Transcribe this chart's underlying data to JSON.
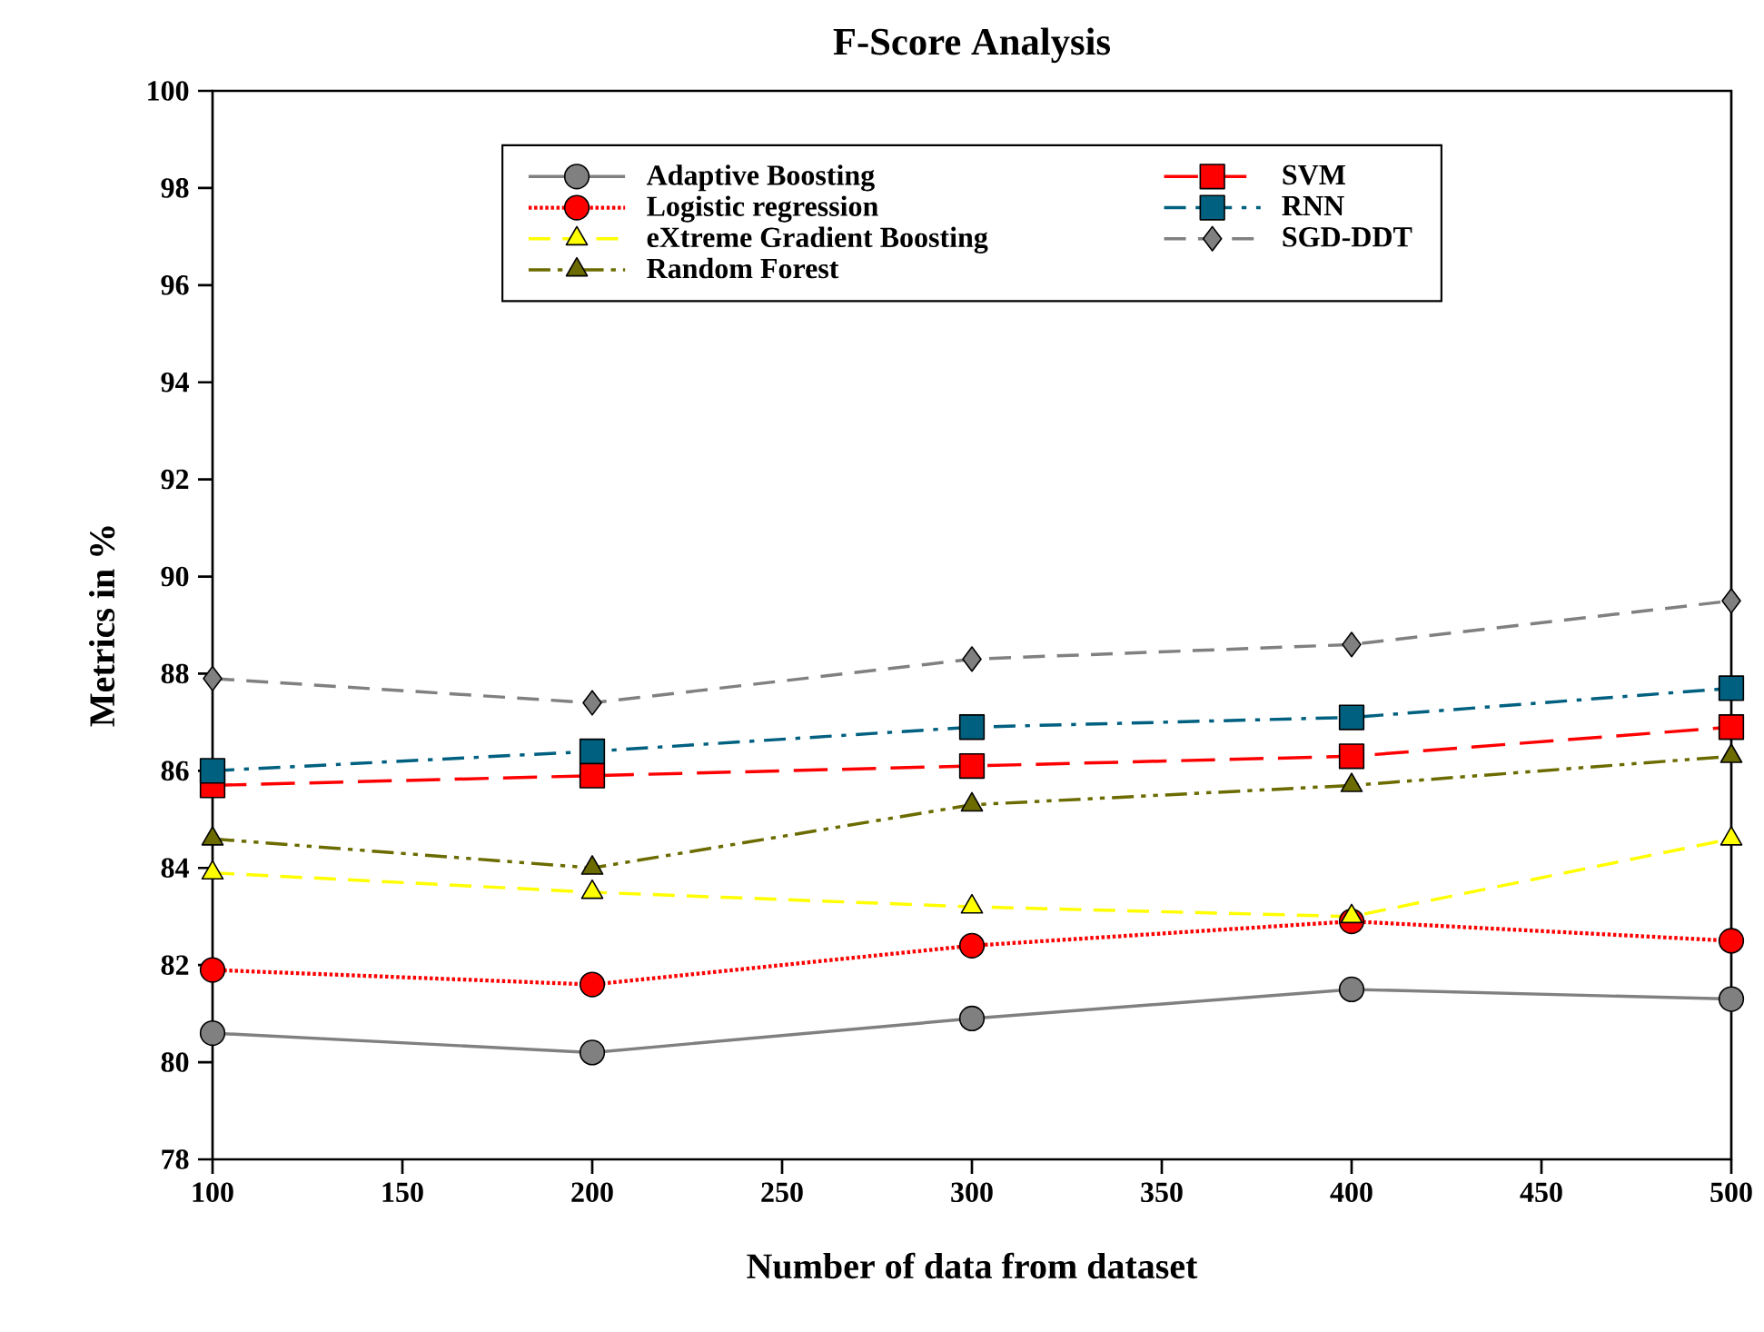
{
  "chart_data": {
    "type": "line",
    "title": "F-Score Analysis",
    "xlabel": "Number of data from dataset",
    "ylabel": "Metrics in %",
    "x": [
      100,
      200,
      300,
      400,
      500
    ],
    "xlim": [
      100,
      500
    ],
    "xticks": [
      100,
      150,
      200,
      250,
      300,
      350,
      400,
      450,
      500
    ],
    "ylim": [
      78,
      100
    ],
    "yticks": [
      78,
      80,
      82,
      84,
      86,
      88,
      90,
      92,
      94,
      96,
      98,
      100
    ],
    "grid": false,
    "legend": "top",
    "series": [
      {
        "name": "Adaptive Boosting",
        "color": "#808080",
        "marker": "circle",
        "line_style": "solid",
        "values": [
          80.6,
          80.2,
          80.9,
          81.5,
          81.3
        ]
      },
      {
        "name": "Logistic regression",
        "color": "#ff0000",
        "marker": "circle",
        "line_style": "dotted",
        "values": [
          81.9,
          81.6,
          82.4,
          82.9,
          82.5
        ]
      },
      {
        "name": "eXtreme Gradient Boosting",
        "color": "#ffff00",
        "marker": "triangle-down",
        "line_style": "dashed",
        "values": [
          83.9,
          83.5,
          83.2,
          83.0,
          84.6
        ]
      },
      {
        "name": "Random Forest",
        "color": "#6b6b00",
        "marker": "triangle",
        "line_style": "dashdotdot",
        "values": [
          84.6,
          84.0,
          85.3,
          85.7,
          86.3
        ]
      },
      {
        "name": "SVM",
        "color": "#ff0000",
        "marker": "square",
        "line_style": "longdashed",
        "values": [
          85.7,
          85.9,
          86.1,
          86.3,
          86.9
        ]
      },
      {
        "name": "RNN",
        "color": "#006080",
        "marker": "square",
        "line_style": "dashdot",
        "values": [
          86.0,
          86.4,
          86.9,
          87.1,
          87.7
        ]
      },
      {
        "name": "SGD-DDT",
        "color": "#808080",
        "marker": "diamond",
        "line_style": "dashed",
        "values": [
          87.9,
          87.4,
          88.3,
          88.6,
          89.5
        ]
      }
    ]
  }
}
